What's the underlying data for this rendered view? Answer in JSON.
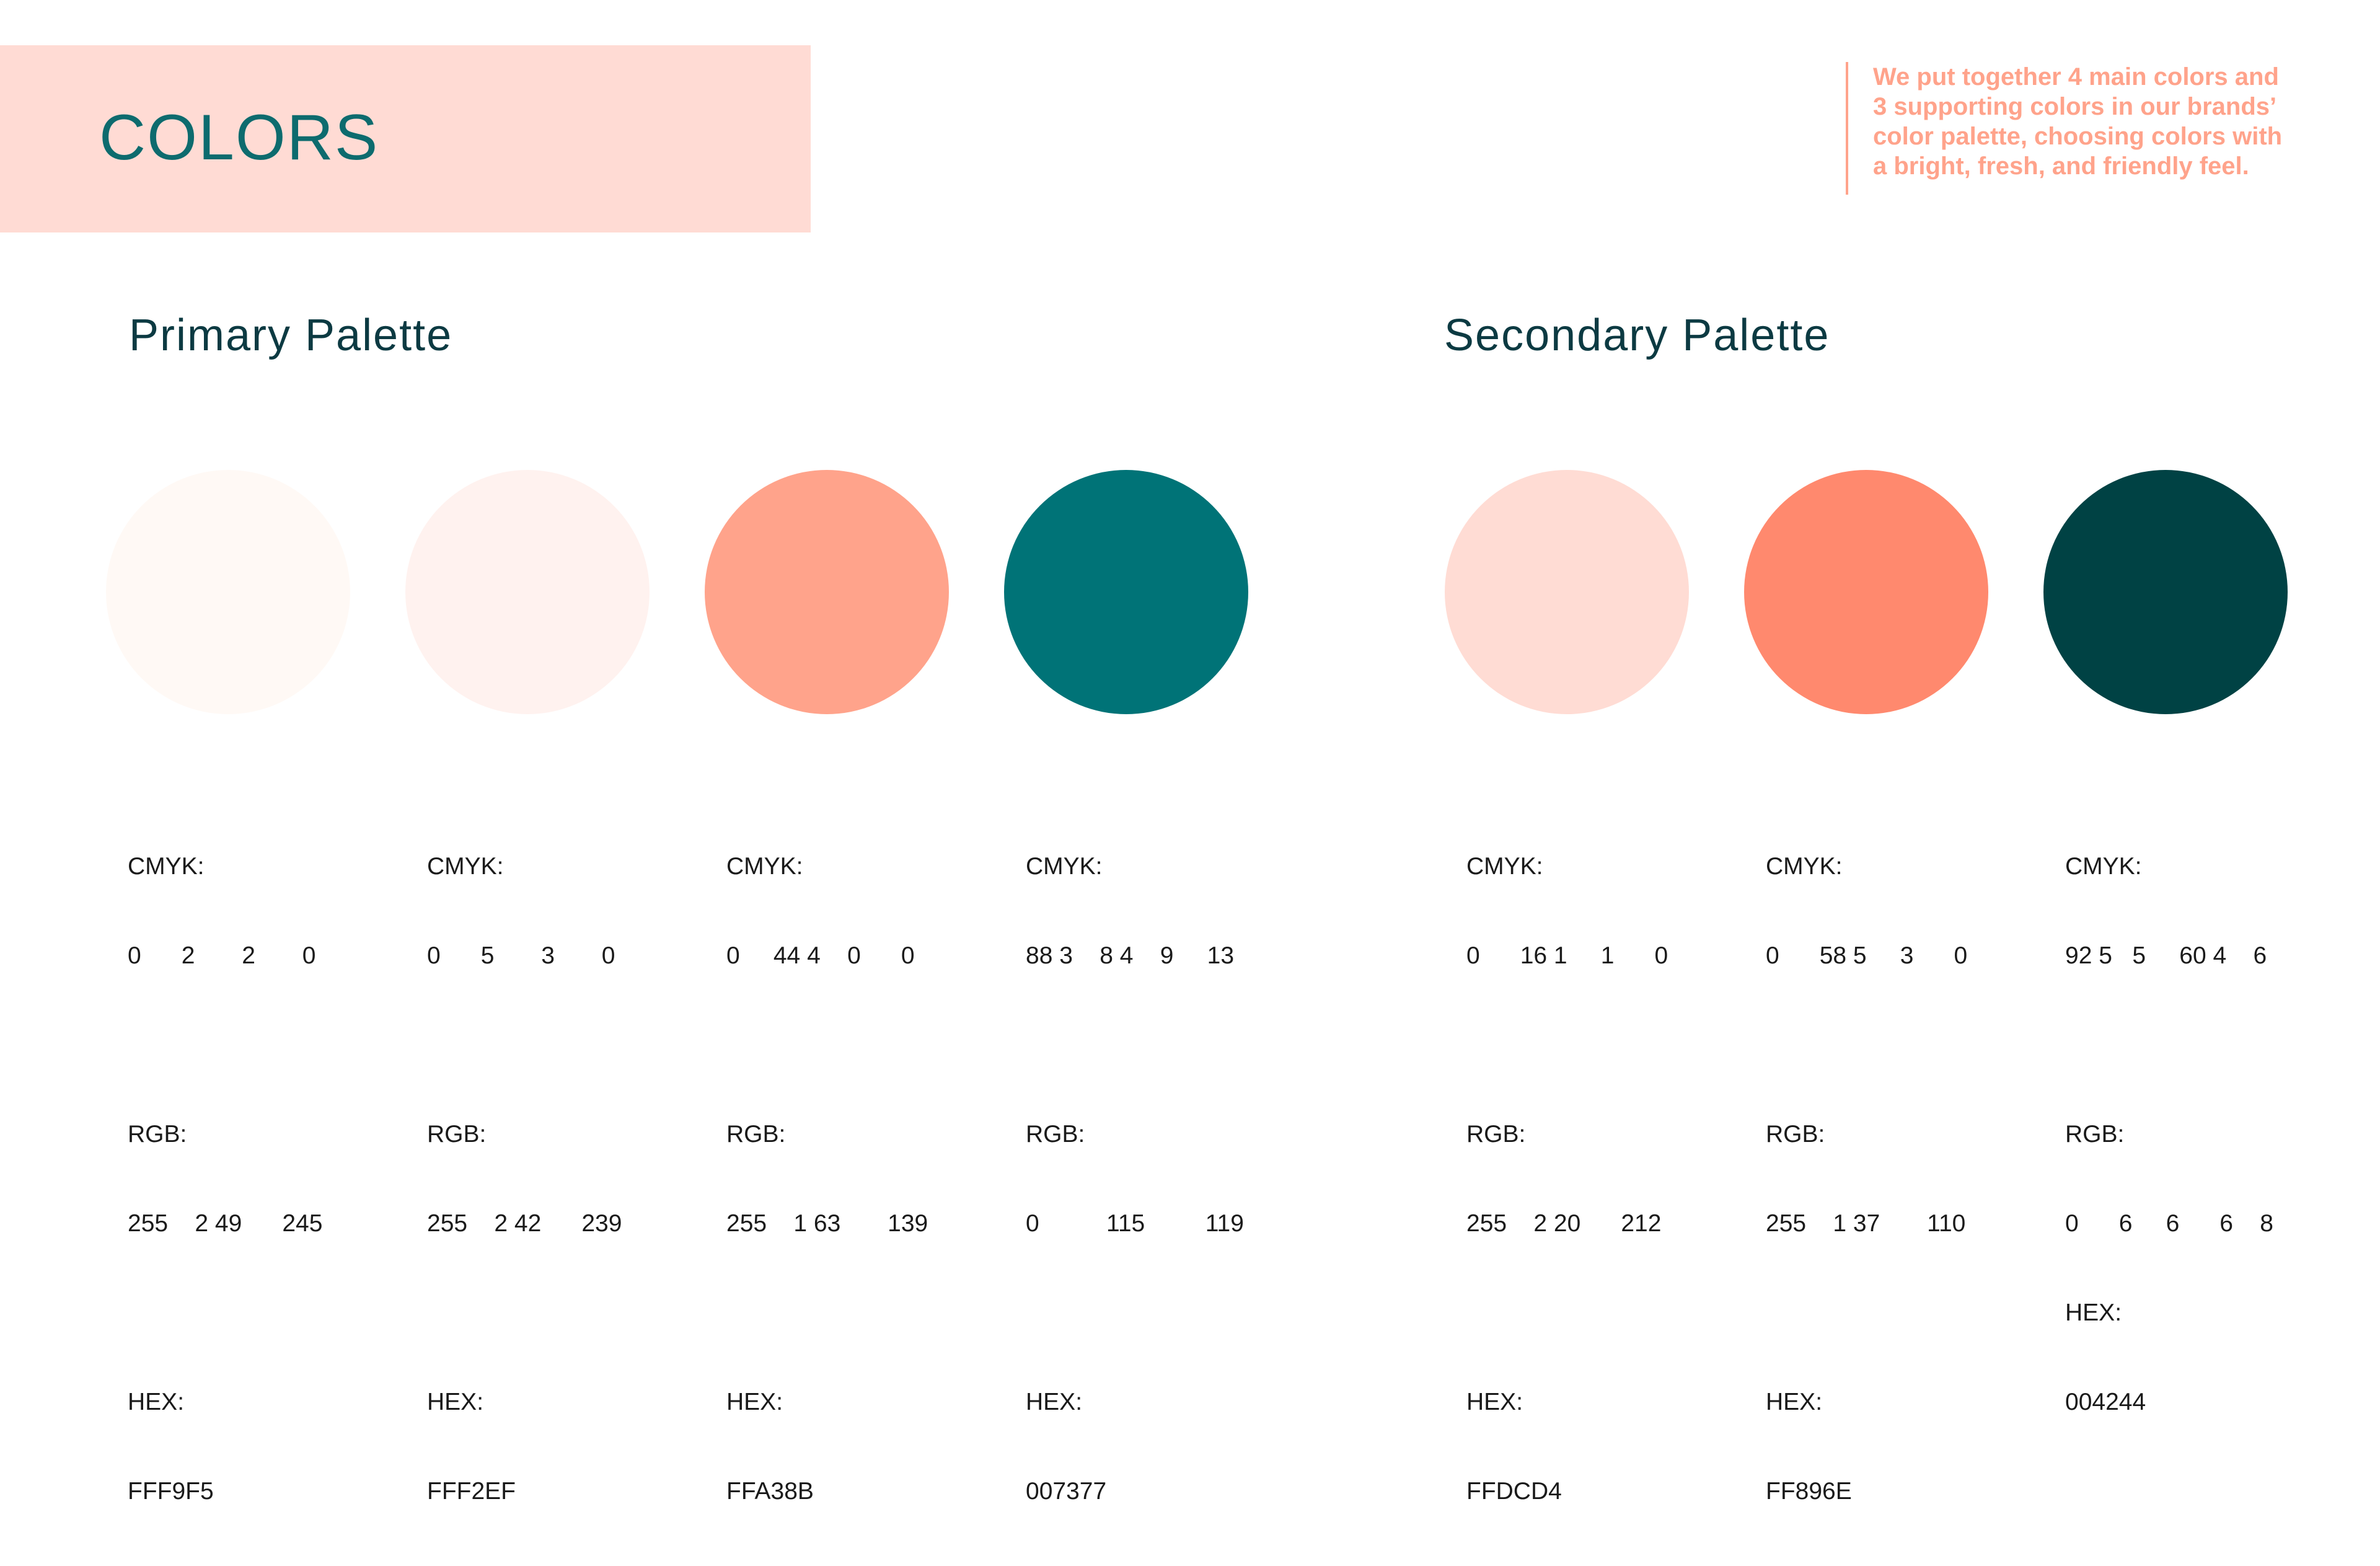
{
  "header": {
    "title": "COLORS"
  },
  "intro": {
    "text": "We put together 4 main colors and\n3 supporting colors in our brands’\ncolor palette, choosing colors with\na bright, fresh, and friendly feel."
  },
  "sections": {
    "primary_title": "Primary Palette",
    "secondary_title": "Secondary Palette"
  },
  "labels": {
    "cmyk": "CMYK:",
    "rgb": "RGB:",
    "hex": "HEX:"
  },
  "primary": [
    {
      "color": "#FFF9F5",
      "cmyk": "0      2       2       0",
      "rgb": "255    2 49      245",
      "hex": "FFF9F5"
    },
    {
      "color": "#FFF2EF",
      "cmyk": "0      5       3       0",
      "rgb": "255    2 42      239",
      "hex": "FFF2EF"
    },
    {
      "color": "#FFA38B",
      "cmyk": "0     44 4    0      0",
      "rgb": "255    1 63       139",
      "hex": "FFA38B"
    },
    {
      "color": "#007377",
      "cmyk": "88 3    8 4    9     13",
      "rgb": "0          115         119",
      "hex": "007377"
    }
  ],
  "secondary": [
    {
      "color": "#FFDCD4",
      "cmyk": "0      16 1     1      0",
      "rgb": "255    2 20      212",
      "hex": "FFDCD4"
    },
    {
      "color": "#FF896E",
      "cmyk": "0      58 5     3      0",
      "rgb": "255    1 37       110",
      "hex": "FF896E"
    },
    {
      "color": "#004244",
      "cmyk": "92 5   5     60 4    6",
      "rgb": "0      6     6      6    8",
      "hex": "004244"
    }
  ]
}
